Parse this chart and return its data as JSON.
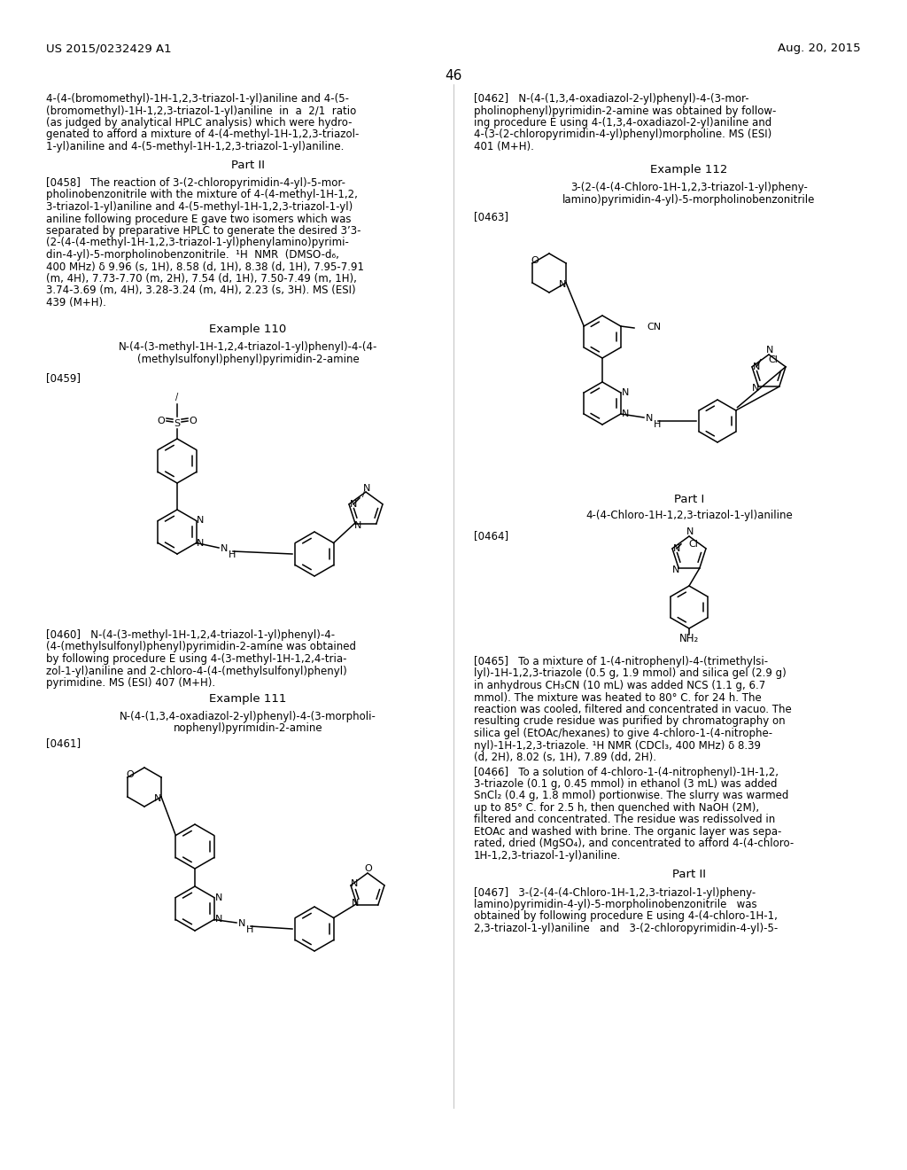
{
  "page_number": "46",
  "header_left": "US 2015/0232429 A1",
  "header_right": "Aug. 20, 2015",
  "background_color": "#ffffff",
  "text_color": "#000000"
}
